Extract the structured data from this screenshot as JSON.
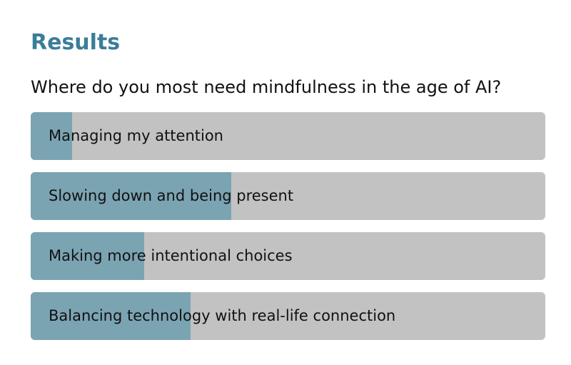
{
  "results": {
    "title": "Results",
    "question": "Where do you most need mindfulness in the age of AI?",
    "options": [
      {
        "label": "Managing my attention",
        "fill_fraction": 0.08
      },
      {
        "label": "Slowing down and being present",
        "fill_fraction": 0.39
      },
      {
        "label": "Making more intentional choices",
        "fill_fraction": 0.22
      },
      {
        "label": "Balancing technology with real-life connection",
        "fill_fraction": 0.31
      }
    ]
  },
  "colors": {
    "accent": "#3a7d9a",
    "bar_background": "#c2c2c2",
    "bar_fill": "#7ba4b3",
    "text": "#111111"
  }
}
